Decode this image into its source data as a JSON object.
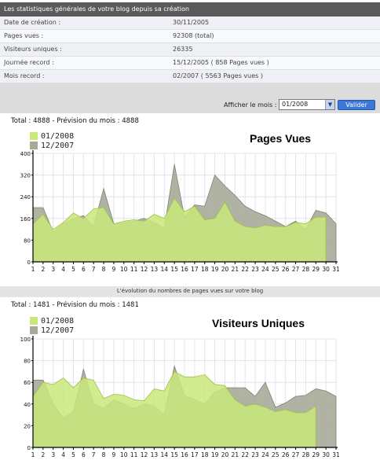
{
  "stats": {
    "header": "Les statistiques générales de votre blog depuis sa création",
    "rows": [
      {
        "label": "Date de création :",
        "value": "30/11/2005"
      },
      {
        "label": "Pages vues :",
        "value": "92308 (total)"
      },
      {
        "label": "Visiteurs uniques :",
        "value": "26335"
      },
      {
        "label": "Journée record :",
        "value": "15/12/2005 ( 858 Pages vues )"
      },
      {
        "label": "Mois record :",
        "value": "02/2007 ( 5563 Pages vues )"
      }
    ]
  },
  "month_form": {
    "label": "Afficher le mois :",
    "selected": "01/2008",
    "submit_label": "Valider"
  },
  "caption_between": "L'évolution du nombres de pages vues sur votre blog",
  "pages_panel": {
    "total_line": "Total : 4888 - Prévision du mois : 4888",
    "title": "Pages Vues",
    "legend": [
      "01/2008",
      "12/2007"
    ]
  },
  "visitors_panel": {
    "total_line": "Total : 1481 - Prévision du mois : 1481",
    "title": "Visiteurs Uniques",
    "legend": [
      "01/2008",
      "12/2007"
    ]
  },
  "colors": {
    "current": "#c9e87a",
    "previous": "#a7aa99",
    "overlap": "#b5d66a",
    "axis": "#000000",
    "grid": "#e0e4ea"
  },
  "chart_data": [
    {
      "type": "area",
      "title": "Pages Vues",
      "x": [
        1,
        2,
        3,
        4,
        5,
        6,
        7,
        8,
        9,
        10,
        11,
        12,
        13,
        14,
        15,
        16,
        17,
        18,
        19,
        20,
        21,
        22,
        23,
        24,
        25,
        26,
        27,
        28,
        29,
        30,
        31
      ],
      "ylim": [
        0,
        400
      ],
      "yticks": [
        0,
        80,
        160,
        240,
        320,
        400
      ],
      "series": [
        {
          "name": "01/2008",
          "values": [
            140,
            175,
            120,
            145,
            180,
            160,
            195,
            200,
            140,
            150,
            155,
            150,
            175,
            160,
            235,
            185,
            205,
            155,
            160,
            220,
            150,
            130,
            125,
            135,
            130,
            130,
            145,
            140,
            165,
            165,
            null
          ]
        },
        {
          "name": "12/2007",
          "values": [
            200,
            200,
            110,
            140,
            160,
            170,
            130,
            270,
            140,
            145,
            150,
            160,
            145,
            125,
            360,
            165,
            210,
            205,
            320,
            280,
            245,
            205,
            185,
            170,
            150,
            130,
            150,
            120,
            190,
            180,
            140
          ]
        }
      ]
    },
    {
      "type": "area",
      "title": "Visiteurs Uniques",
      "x": [
        1,
        2,
        3,
        4,
        5,
        6,
        7,
        8,
        9,
        10,
        11,
        12,
        13,
        14,
        15,
        16,
        17,
        18,
        19,
        20,
        21,
        22,
        23,
        24,
        25,
        26,
        27,
        28,
        29,
        30,
        31
      ],
      "ylim": [
        0,
        100
      ],
      "yticks": [
        0,
        20,
        40,
        60,
        80,
        100
      ],
      "series": [
        {
          "name": "01/2008",
          "values": [
            47,
            60,
            58,
            64,
            55,
            64,
            62,
            45,
            49,
            48,
            44,
            43,
            54,
            52,
            70,
            65,
            65,
            67,
            58,
            57,
            44,
            38,
            40,
            37,
            33,
            35,
            32,
            32,
            38,
            null,
            null
          ]
        },
        {
          "name": "12/2007",
          "values": [
            62,
            62,
            40,
            27,
            33,
            72,
            40,
            36,
            44,
            40,
            36,
            40,
            38,
            30,
            75,
            48,
            44,
            40,
            51,
            55,
            55,
            55,
            47,
            60,
            37,
            41,
            47,
            48,
            54,
            52,
            47
          ]
        }
      ]
    }
  ]
}
